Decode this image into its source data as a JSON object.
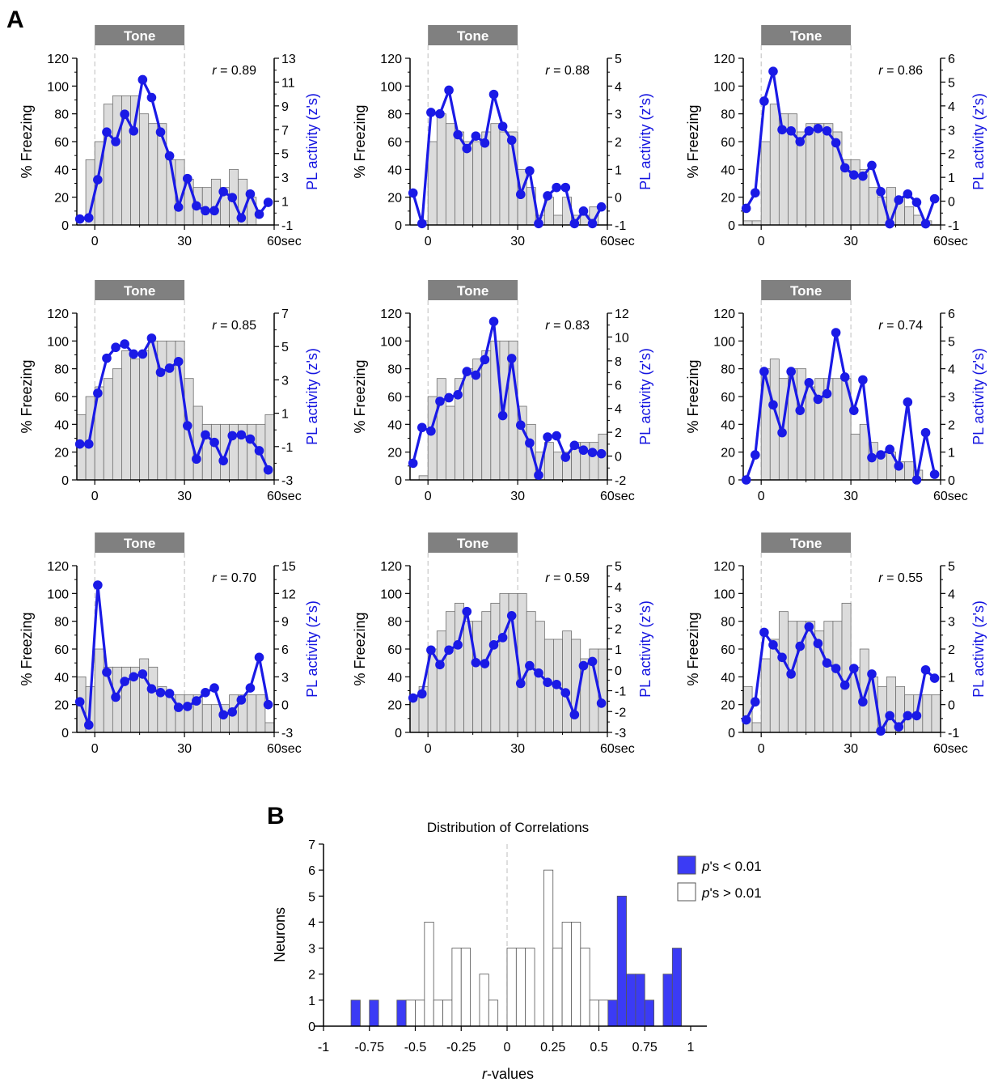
{
  "figure": {
    "panel_a_label": "A",
    "panel_b_label": "B"
  },
  "colors": {
    "activity_line": "#1a1ae6",
    "freezing_bar_fill": "#dcdcdc",
    "freezing_bar_stroke": "#6e6e6e",
    "tone_bar": "#808080",
    "significant_fill": "#3b3bf5",
    "nonsignificant_fill": "#ffffff"
  },
  "chart_data": [
    {
      "type": "bar+line",
      "tone_label": "Tone",
      "r_prefix": "r",
      "r_value": "= 0.89",
      "xlabel_suffix": "sec",
      "x_ticks": [
        "0",
        "30",
        "60"
      ],
      "ylabel_left": "% Freezing",
      "ylabel_right": "PL activity (z's)",
      "ylim_left": [
        0,
        120
      ],
      "yticks_left": [
        0,
        20,
        40,
        60,
        80,
        100,
        120
      ],
      "ylim_right": [
        -1,
        13
      ],
      "yticks_right": [
        -1,
        1,
        3,
        5,
        7,
        9,
        11,
        13
      ],
      "freezing_bins_start": -6,
      "freezing_bin_width": 3,
      "freezing": [
        0,
        47,
        60,
        87,
        93,
        93,
        93,
        80,
        73,
        73,
        47,
        47,
        33,
        27,
        27,
        33,
        27,
        40,
        33,
        20,
        0,
        0,
        0,
        0
      ],
      "activity_x": [
        -5,
        -2,
        1,
        4,
        7,
        10,
        13,
        16,
        19,
        22,
        25,
        28,
        31,
        34,
        37,
        40,
        43,
        46,
        49,
        52,
        55,
        58
      ],
      "activity": [
        -0.5,
        -0.4,
        2.8,
        6.8,
        6,
        8.3,
        6.9,
        11.2,
        9.7,
        6.8,
        4.8,
        0.5,
        2.9,
        0.6,
        0.2,
        0.2,
        1.8,
        1.3,
        -0.4,
        1.6,
        -0.1,
        0.9
      ]
    },
    {
      "type": "bar+line",
      "tone_label": "Tone",
      "r_prefix": "r",
      "r_value": "= 0.88",
      "xlabel_suffix": "sec",
      "x_ticks": [
        "0",
        "30",
        "60"
      ],
      "ylabel_left": "% Freezing",
      "ylabel_right": "PL activity (z's)",
      "ylim_left": [
        0,
        120
      ],
      "yticks_left": [
        0,
        20,
        40,
        60,
        80,
        100,
        120
      ],
      "ylim_right": [
        -1,
        5
      ],
      "yticks_right": [
        -1,
        0,
        1,
        2,
        3,
        4,
        5
      ],
      "freezing_bins_start": -6,
      "freezing_bin_width": 3,
      "freezing": [
        0,
        3,
        60,
        80,
        73,
        67,
        60,
        60,
        67,
        73,
        67,
        67,
        40,
        27,
        7,
        20,
        7,
        20,
        7,
        7,
        13,
        0,
        0,
        0
      ],
      "activity_x": [
        -5,
        -2,
        1,
        4,
        7,
        10,
        13,
        16,
        19,
        22,
        25,
        28,
        31,
        34,
        37,
        40,
        43,
        46,
        49,
        52,
        55,
        58
      ],
      "activity": [
        0.15,
        -0.95,
        3.05,
        3,
        3.85,
        2.25,
        1.75,
        2.2,
        1.95,
        3.7,
        2.55,
        2.05,
        0.1,
        0.95,
        -0.95,
        0.05,
        0.35,
        0.35,
        -0.95,
        -0.5,
        -0.95,
        -0.35
      ]
    },
    {
      "type": "bar+line",
      "tone_label": "Tone",
      "r_prefix": "r",
      "r_value": "= 0.86",
      "xlabel_suffix": "sec",
      "x_ticks": [
        "0",
        "30",
        "60"
      ],
      "ylabel_left": "% Freezing",
      "ylabel_right": "PL activity (z's)",
      "ylim_left": [
        0,
        120
      ],
      "yticks_left": [
        0,
        20,
        40,
        60,
        80,
        100,
        120
      ],
      "ylim_right": [
        -1,
        6
      ],
      "yticks_right": [
        -1,
        0,
        1,
        2,
        3,
        4,
        5,
        6
      ],
      "freezing_bins_start": -6,
      "freezing_bin_width": 3,
      "freezing": [
        3,
        3,
        60,
        87,
        80,
        80,
        67,
        73,
        73,
        73,
        67,
        47,
        47,
        40,
        27,
        20,
        27,
        20,
        13,
        7,
        3,
        0,
        0,
        0
      ],
      "activity_x": [
        -5,
        -2,
        1,
        4,
        7,
        10,
        13,
        16,
        19,
        22,
        25,
        28,
        31,
        34,
        37,
        40,
        43,
        46,
        49,
        52,
        55,
        58
      ],
      "activity": [
        -0.3,
        0.35,
        4.2,
        5.45,
        3,
        2.95,
        2.5,
        2.95,
        3.05,
        2.95,
        2.45,
        1.4,
        1.1,
        1.05,
        1.5,
        0.4,
        -0.95,
        0.05,
        0.3,
        -0.05,
        -0.95,
        0.1
      ]
    },
    {
      "type": "bar+line",
      "tone_label": "Tone",
      "r_prefix": "r",
      "r_value": "= 0.85",
      "xlabel_suffix": "sec",
      "x_ticks": [
        "0",
        "30",
        "60"
      ],
      "ylabel_left": "% Freezing",
      "ylabel_right": "PL activity (z's)",
      "ylim_left": [
        0,
        120
      ],
      "yticks_left": [
        0,
        20,
        40,
        60,
        80,
        100,
        120
      ],
      "ylim_right": [
        -3,
        7
      ],
      "yticks_right": [
        -3,
        -1,
        1,
        3,
        5,
        7
      ],
      "freezing_bins_start": -6,
      "freezing_bin_width": 3,
      "freezing": [
        47,
        60,
        67,
        73,
        80,
        93,
        87,
        93,
        100,
        100,
        100,
        100,
        73,
        53,
        40,
        40,
        40,
        40,
        40,
        40,
        40,
        47,
        0,
        0
      ],
      "activity_x": [
        -5,
        -2,
        1,
        4,
        7,
        10,
        13,
        16,
        19,
        22,
        25,
        28,
        31,
        34,
        37,
        40,
        43,
        46,
        49,
        52,
        55,
        58
      ],
      "activity": [
        -0.85,
        -0.85,
        2.2,
        4.3,
        4.95,
        5.15,
        4.55,
        4.55,
        5.5,
        3.45,
        3.7,
        4.1,
        0.25,
        -1.75,
        -0.3,
        -0.75,
        -1.85,
        -0.35,
        -0.3,
        -0.55,
        -1.25,
        -2.4
      ]
    },
    {
      "type": "bar+line",
      "tone_label": "Tone",
      "r_prefix": "r",
      "r_value": "= 0.83",
      "xlabel_suffix": "sec",
      "x_ticks": [
        "0",
        "30",
        "60"
      ],
      "ylabel_left": "% Freezing",
      "ylabel_right": "PL activity (z's)",
      "ylim_left": [
        0,
        120
      ],
      "yticks_left": [
        0,
        20,
        40,
        60,
        80,
        100,
        120
      ],
      "ylim_right": [
        -2,
        12
      ],
      "yticks_right": [
        -2,
        0,
        2,
        4,
        6,
        8,
        10,
        12
      ],
      "freezing_bins_start": -6,
      "freezing_bin_width": 3,
      "freezing": [
        0,
        3,
        60,
        73,
        53,
        73,
        80,
        87,
        93,
        100,
        100,
        100,
        53,
        40,
        20,
        27,
        20,
        20,
        27,
        27,
        27,
        33,
        0,
        0
      ],
      "activity_x": [
        -5,
        -2,
        1,
        4,
        7,
        10,
        13,
        16,
        19,
        22,
        25,
        28,
        31,
        34,
        37,
        40,
        43,
        46,
        49,
        52,
        55,
        58
      ],
      "activity": [
        -0.6,
        2.4,
        2.1,
        4.6,
        4.9,
        5.15,
        7.1,
        6.8,
        8.1,
        11.3,
        3.4,
        8.2,
        2.6,
        1.1,
        -1.6,
        1.6,
        1.7,
        -0.1,
        0.9,
        0.5,
        0.3,
        0.2
      ]
    },
    {
      "type": "bar+line",
      "tone_label": "Tone",
      "r_prefix": "r",
      "r_value": "= 0.74",
      "xlabel_suffix": "sec",
      "x_ticks": [
        "0",
        "30",
        "60"
      ],
      "ylabel_left": "% Freezing",
      "ylabel_right": "PL activity (z's)",
      "ylim_left": [
        0,
        120
      ],
      "yticks_left": [
        0,
        20,
        40,
        60,
        80,
        100,
        120
      ],
      "ylim_right": [
        0,
        6
      ],
      "yticks_right": [
        0,
        1,
        2,
        3,
        4,
        5,
        6
      ],
      "freezing_bins_start": -6,
      "freezing_bin_width": 3,
      "freezing": [
        0,
        0,
        80,
        87,
        73,
        80,
        80,
        67,
        73,
        73,
        73,
        73,
        33,
        40,
        27,
        20,
        20,
        13,
        13,
        7,
        0,
        0,
        0,
        0
      ],
      "activity_x": [
        -5,
        -2,
        1,
        4,
        7,
        10,
        13,
        16,
        19,
        22,
        25,
        28,
        31,
        34,
        37,
        40,
        43,
        46,
        49,
        52,
        55,
        58
      ],
      "activity": [
        0,
        0.9,
        3.9,
        2.7,
        1.7,
        3.9,
        2.5,
        3.5,
        2.9,
        3.1,
        5.3,
        3.7,
        2.5,
        3.6,
        0.8,
        0.9,
        1.1,
        0.5,
        2.8,
        0,
        1.7,
        0.2
      ]
    },
    {
      "type": "bar+line",
      "tone_label": "Tone",
      "r_prefix": "r",
      "r_value": "= 0.70",
      "xlabel_suffix": "sec",
      "x_ticks": [
        "0",
        "30",
        "60"
      ],
      "ylabel_left": "% Freezing",
      "ylabel_right": "PL activity (z's)",
      "ylim_left": [
        0,
        120
      ],
      "yticks_left": [
        0,
        20,
        40,
        60,
        80,
        100,
        120
      ],
      "ylim_right": [
        -3,
        15
      ],
      "yticks_right": [
        -3,
        0,
        3,
        6,
        9,
        12,
        15
      ],
      "freezing_bins_start": -6,
      "freezing_bin_width": 3,
      "freezing": [
        40,
        33,
        60,
        47,
        47,
        47,
        47,
        53,
        47,
        33,
        27,
        27,
        27,
        27,
        20,
        20,
        20,
        27,
        27,
        27,
        27,
        7,
        0,
        0
      ],
      "activity_x": [
        -5,
        -2,
        1,
        4,
        7,
        10,
        13,
        16,
        19,
        22,
        25,
        28,
        31,
        34,
        37,
        40,
        43,
        46,
        49,
        52,
        55,
        58
      ],
      "activity": [
        0.3,
        -2.2,
        12.9,
        3.5,
        0.8,
        2.5,
        3,
        3.3,
        1.7,
        1.3,
        1.2,
        -0.3,
        -0.2,
        0.4,
        1.3,
        1.8,
        -1.1,
        -0.8,
        0.5,
        1.8,
        5.1,
        0
      ]
    },
    {
      "type": "bar+line",
      "tone_label": "Tone",
      "r_prefix": "r",
      "r_value": "= 0.59",
      "xlabel_suffix": "sec",
      "x_ticks": [
        "0",
        "30",
        "60"
      ],
      "ylabel_left": "% Freezing",
      "ylabel_right": "PL activity (z's)",
      "ylim_left": [
        0,
        120
      ],
      "yticks_left": [
        0,
        20,
        40,
        60,
        80,
        100,
        120
      ],
      "ylim_right": [
        -3,
        5
      ],
      "yticks_right": [
        -3,
        -2,
        -1,
        0,
        1,
        2,
        3,
        4,
        5
      ],
      "freezing_bins_start": -6,
      "freezing_bin_width": 3,
      "freezing": [
        27,
        33,
        60,
        73,
        87,
        93,
        80,
        80,
        87,
        93,
        100,
        100,
        100,
        87,
        80,
        67,
        67,
        73,
        67,
        53,
        60,
        60,
        0,
        0
      ],
      "activity_x": [
        -5,
        -2,
        1,
        4,
        7,
        10,
        13,
        16,
        19,
        22,
        25,
        28,
        31,
        34,
        37,
        40,
        43,
        46,
        49,
        52,
        55,
        58
      ],
      "activity": [
        -1.35,
        -1.15,
        0.95,
        0.25,
        0.95,
        1.2,
        2.8,
        0.35,
        0.3,
        1.2,
        1.55,
        2.6,
        -0.65,
        0.2,
        -0.15,
        -0.6,
        -0.7,
        -1.1,
        -2.15,
        0.2,
        0.4,
        -1.6
      ]
    },
    {
      "type": "bar+line",
      "tone_label": "Tone",
      "r_prefix": "r",
      "r_value": "= 0.55",
      "xlabel_suffix": "sec",
      "x_ticks": [
        "0",
        "30",
        "60"
      ],
      "ylabel_left": "% Freezing",
      "ylabel_right": "PL activity (z's)",
      "ylim_left": [
        0,
        120
      ],
      "yticks_left": [
        0,
        20,
        40,
        60,
        80,
        100,
        120
      ],
      "ylim_right": [
        -1,
        5
      ],
      "yticks_right": [
        -1,
        0,
        1,
        2,
        3,
        4,
        5
      ],
      "freezing_bins_start": -6,
      "freezing_bin_width": 3,
      "freezing": [
        33,
        7,
        53,
        67,
        87,
        80,
        80,
        80,
        73,
        80,
        80,
        93,
        47,
        60,
        40,
        33,
        40,
        33,
        27,
        27,
        27,
        27,
        0,
        0
      ],
      "activity_x": [
        -5,
        -2,
        1,
        4,
        7,
        10,
        13,
        16,
        19,
        22,
        25,
        28,
        31,
        34,
        37,
        40,
        43,
        46,
        49,
        52,
        55,
        58
      ],
      "activity": [
        -0.55,
        0.1,
        2.6,
        2.15,
        1.7,
        1.1,
        2.1,
        2.8,
        2.2,
        1.5,
        1.3,
        0.7,
        1.3,
        0.1,
        1.1,
        -0.95,
        -0.4,
        -0.8,
        -0.4,
        -0.4,
        1.25,
        0.95
      ]
    },
    {
      "type": "bar",
      "title": "Distribution of Correlations",
      "xlabel_prefix": "r",
      "xlabel_suffix": "-values",
      "ylabel": "Neurons",
      "xlim": [
        -1,
        1
      ],
      "ylim": [
        0,
        7
      ],
      "x_ticks": [
        "-1",
        "-0.75",
        "-0.5",
        "-0.25",
        "0",
        "0.25",
        "0.5",
        "0.75",
        "1"
      ],
      "y_ticks": [
        0,
        1,
        2,
        3,
        4,
        5,
        6,
        7
      ],
      "bin_width": 0.05,
      "legend_placement": "top-right",
      "legend": [
        {
          "label_prefix": "p",
          "label_suffix": "'s < 0.01",
          "significant": true
        },
        {
          "label_prefix": "p",
          "label_suffix": "'s > 0.01",
          "significant": false
        }
      ],
      "bins": [
        {
          "x": -0.85,
          "n": 1,
          "sig": true
        },
        {
          "x": -0.75,
          "n": 1,
          "sig": true
        },
        {
          "x": -0.6,
          "n": 1,
          "sig": true
        },
        {
          "x": -0.55,
          "n": 1,
          "sig": false
        },
        {
          "x": -0.5,
          "n": 1,
          "sig": false
        },
        {
          "x": -0.45,
          "n": 4,
          "sig": false
        },
        {
          "x": -0.4,
          "n": 1,
          "sig": false
        },
        {
          "x": -0.35,
          "n": 1,
          "sig": false
        },
        {
          "x": -0.3,
          "n": 3,
          "sig": false
        },
        {
          "x": -0.25,
          "n": 3,
          "sig": false
        },
        {
          "x": -0.15,
          "n": 2,
          "sig": false
        },
        {
          "x": -0.1,
          "n": 1,
          "sig": false
        },
        {
          "x": 0,
          "n": 3,
          "sig": false
        },
        {
          "x": 0.05,
          "n": 3,
          "sig": false
        },
        {
          "x": 0.1,
          "n": 3,
          "sig": false
        },
        {
          "x": 0.2,
          "n": 6,
          "sig": false
        },
        {
          "x": 0.25,
          "n": 3,
          "sig": false
        },
        {
          "x": 0.3,
          "n": 4,
          "sig": false
        },
        {
          "x": 0.35,
          "n": 4,
          "sig": false
        },
        {
          "x": 0.4,
          "n": 3,
          "sig": false
        },
        {
          "x": 0.45,
          "n": 1,
          "sig": false
        },
        {
          "x": 0.5,
          "n": 1,
          "sig": false
        },
        {
          "x": 0.55,
          "n": 1,
          "sig": true
        },
        {
          "x": 0.6,
          "n": 5,
          "sig": true
        },
        {
          "x": 0.65,
          "n": 2,
          "sig": true
        },
        {
          "x": 0.7,
          "n": 2,
          "sig": true
        },
        {
          "x": 0.75,
          "n": 1,
          "sig": true
        },
        {
          "x": 0.85,
          "n": 2,
          "sig": true
        },
        {
          "x": 0.9,
          "n": 3,
          "sig": true
        }
      ]
    }
  ]
}
